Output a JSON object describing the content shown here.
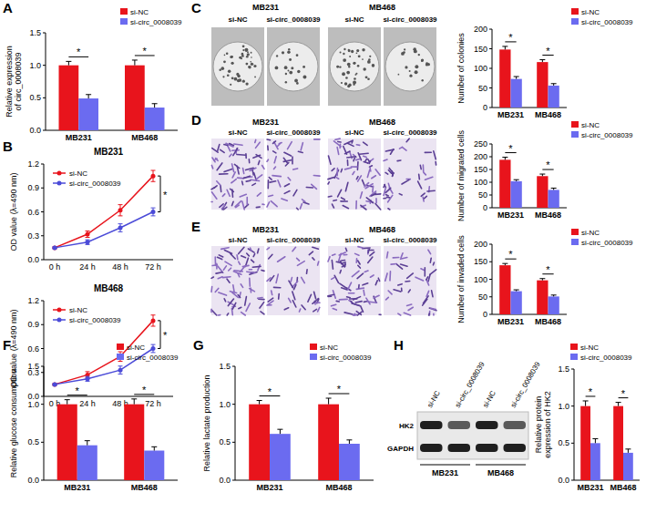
{
  "chart_data": [
    {
      "type": "bar",
      "panel": "A",
      "ylabel": [
        "Relative expression",
        "of circ_0008039"
      ],
      "categories": [
        "MB231",
        "MB468"
      ],
      "series": [
        {
          "name": "si-NC",
          "color": "#e8141c",
          "values": [
            1.0,
            1.0
          ],
          "errors": [
            0.06,
            0.08
          ]
        },
        {
          "name": "si-circ_0008039",
          "color": "#6b6bf0",
          "values": [
            0.49,
            0.35
          ],
          "errors": [
            0.06,
            0.06
          ]
        }
      ],
      "ylim": [
        0,
        1.5
      ],
      "yticks": [
        {
          "value": 0,
          "label": "0.0"
        },
        {
          "value": 0.5,
          "label": "0.5"
        },
        {
          "value": 1,
          "label": "1.0"
        },
        {
          "value": 1.5,
          "label": "1.5"
        }
      ],
      "significance": [
        "*",
        "*"
      ],
      "legend": "upper right",
      "grid": false
    },
    {
      "type": "line",
      "panel": "B",
      "title": "MB231",
      "ylabel": [
        "OD value (λ=490 nm)"
      ],
      "categories": [
        "0 h",
        "24 h",
        "48 h",
        "72 h"
      ],
      "series": [
        {
          "name": "si-NC",
          "color": "#e8141c",
          "marker": "circle",
          "line_style": "solid",
          "values": [
            0.15,
            0.32,
            0.62,
            1.05
          ],
          "errors": [
            0.01,
            0.04,
            0.07,
            0.07
          ]
        },
        {
          "name": "si-circ_0008039",
          "color": "#4b4bd8",
          "marker": "circle",
          "line_style": "solid",
          "values": [
            0.15,
            0.22,
            0.4,
            0.6
          ],
          "errors": [
            0.01,
            0.03,
            0.05,
            0.05
          ]
        }
      ],
      "ylim": [
        0,
        1.2
      ],
      "yticks": [
        {
          "value": 0,
          "label": "0.0"
        },
        {
          "value": 0.3,
          "label": "0.3"
        },
        {
          "value": 0.6,
          "label": "0.6"
        },
        {
          "value": 0.9,
          "label": "0.9"
        },
        {
          "value": 1.2,
          "label": "1.2"
        }
      ],
      "significance": [
        "*"
      ],
      "legend": "upper left",
      "grid": false
    },
    {
      "type": "line",
      "title": "MB468",
      "ylabel": [
        "OD value (λ=490 nm)"
      ],
      "categories": [
        "0 h",
        "24 h",
        "48 h",
        "72 h"
      ],
      "series": [
        {
          "name": "si-NC",
          "color": "#e8141c",
          "marker": "circle",
          "line_style": "solid",
          "values": [
            0.15,
            0.27,
            0.5,
            0.95
          ],
          "errors": [
            0.01,
            0.04,
            0.06,
            0.07
          ]
        },
        {
          "name": "si-circ_0008039",
          "color": "#4b4bd8",
          "marker": "circle",
          "line_style": "solid",
          "values": [
            0.15,
            0.22,
            0.33,
            0.6
          ],
          "errors": [
            0.01,
            0.03,
            0.05,
            0.05
          ]
        }
      ],
      "ylim": [
        0,
        1.2
      ],
      "yticks": [
        {
          "value": 0,
          "label": "0.0"
        },
        {
          "value": 0.3,
          "label": "0.3"
        },
        {
          "value": 0.6,
          "label": "0.6"
        },
        {
          "value": 0.9,
          "label": "0.9"
        },
        {
          "value": 1.2,
          "label": "1.2"
        }
      ],
      "significance": [
        "*"
      ],
      "legend": "upper left",
      "grid": false
    },
    {
      "type": "bar",
      "panel": "C",
      "ylabel": [
        "Number of colonies"
      ],
      "image_labels": {
        "groups": [
          "MB231",
          "MB468"
        ],
        "conditions": [
          "si-NC",
          "si-circ_0008039",
          "si-NC",
          "si-circ_0008039"
        ]
      },
      "categories": [
        "MB231",
        "MB468"
      ],
      "series": [
        {
          "name": "si-NC",
          "color": "#e8141c",
          "values": [
            148,
            116
          ],
          "errors": [
            8,
            6
          ]
        },
        {
          "name": "si-circ_0008039",
          "color": "#6b6bf0",
          "values": [
            73,
            56
          ],
          "errors": [
            6,
            5
          ]
        }
      ],
      "ylim": [
        0,
        200
      ],
      "yticks": [
        0,
        50,
        100,
        150,
        200
      ],
      "significance": [
        "*",
        "*"
      ],
      "legend": "upper right",
      "grid": false
    },
    {
      "type": "bar",
      "panel": "D",
      "ylabel": [
        "Number of migrated cells"
      ],
      "image_labels": {
        "groups": [
          "MB231",
          "MB468"
        ],
        "conditions": [
          "si-NC",
          "si-circ_0008039",
          "si-NC",
          "si-circ_0008039"
        ]
      },
      "categories": [
        "MB231",
        "MB468"
      ],
      "series": [
        {
          "name": "si-NC",
          "color": "#e8141c",
          "values": [
            188,
            124
          ],
          "errors": [
            10,
            8
          ]
        },
        {
          "name": "si-circ_0008039",
          "color": "#6b6bf0",
          "values": [
            104,
            70
          ],
          "errors": [
            6,
            7
          ]
        }
      ],
      "ylim": [
        0,
        250
      ],
      "yticks": [
        0,
        50,
        100,
        150,
        200,
        250
      ],
      "significance": [
        "*",
        "*"
      ],
      "legend": "upper right",
      "grid": false
    },
    {
      "type": "bar",
      "panel": "E",
      "ylabel": [
        "Number of invaded cells"
      ],
      "image_labels": {
        "groups": [
          "MB231",
          "MB468"
        ],
        "conditions": [
          "si-NC",
          "si-circ_0008039",
          "si-NC",
          "si-circ_0008039"
        ]
      },
      "categories": [
        "MB231",
        "MB468"
      ],
      "series": [
        {
          "name": "si-NC",
          "color": "#e8141c",
          "values": [
            140,
            97
          ],
          "errors": [
            5,
            5
          ]
        },
        {
          "name": "si-circ_0008039",
          "color": "#6b6bf0",
          "values": [
            66,
            51
          ],
          "errors": [
            4,
            4
          ]
        }
      ],
      "ylim": [
        0,
        200
      ],
      "yticks": [
        0,
        50,
        100,
        150,
        200
      ],
      "significance": [
        "*",
        "*"
      ],
      "legend": "upper right",
      "grid": false
    },
    {
      "type": "bar",
      "panel": "F",
      "ylabel": [
        "Relative glucose consumption"
      ],
      "categories": [
        "MB231",
        "MB468"
      ],
      "series": [
        {
          "name": "si-NC",
          "color": "#e8141c",
          "values": [
            1.0,
            1.0
          ],
          "errors": [
            0.06,
            0.07
          ]
        },
        {
          "name": "si-circ_0008039",
          "color": "#6b6bf0",
          "values": [
            0.46,
            0.39
          ],
          "errors": [
            0.06,
            0.05
          ]
        }
      ],
      "ylim": [
        0,
        1.5
      ],
      "yticks": [
        {
          "value": 0,
          "label": "0.0"
        },
        {
          "value": 0.5,
          "label": "0.5"
        },
        {
          "value": 1,
          "label": "1.0"
        },
        {
          "value": 1.5,
          "label": "1.5"
        }
      ],
      "significance": [
        "*",
        "*"
      ],
      "legend": "upper right",
      "grid": false
    },
    {
      "type": "bar",
      "panel": "G",
      "ylabel": [
        "Relative lactate production"
      ],
      "categories": [
        "MB231",
        "MB468"
      ],
      "series": [
        {
          "name": "si-NC",
          "color": "#e8141c",
          "values": [
            1.0,
            1.0
          ],
          "errors": [
            0.05,
            0.08
          ]
        },
        {
          "name": "si-circ_0008039",
          "color": "#6b6bf0",
          "values": [
            0.61,
            0.48
          ],
          "errors": [
            0.06,
            0.05
          ]
        }
      ],
      "ylim": [
        0,
        1.5
      ],
      "yticks": [
        {
          "value": 0,
          "label": "0.0"
        },
        {
          "value": 0.5,
          "label": "0.5"
        },
        {
          "value": 1,
          "label": "1.0"
        },
        {
          "value": 1.5,
          "label": "1.5"
        }
      ],
      "significance": [
        "*",
        "*"
      ],
      "legend": "upper right",
      "grid": false
    },
    {
      "type": "bar",
      "panel": "H",
      "ylabel": [
        "Relative protein",
        "expression of HK2"
      ],
      "blot": {
        "lanes": [
          "si-NC",
          "si-circ_0008039",
          "si-NC",
          "si-circ_0008039"
        ],
        "groups": [
          "MB231",
          "MB468"
        ],
        "bands": [
          "HK2",
          "GAPDH"
        ]
      },
      "categories": [
        "MB231",
        "MB468"
      ],
      "series": [
        {
          "name": "si-NC",
          "color": "#e8141c",
          "values": [
            1.0,
            1.0
          ],
          "errors": [
            0.07,
            0.05
          ]
        },
        {
          "name": "si-circ_0008039",
          "color": "#6b6bf0",
          "values": [
            0.5,
            0.37
          ],
          "errors": [
            0.06,
            0.05
          ]
        }
      ],
      "ylim": [
        0,
        1.5
      ],
      "yticks": [
        {
          "value": 0,
          "label": "0.0"
        },
        {
          "value": 0.5,
          "label": "0.5"
        },
        {
          "value": 1,
          "label": "1.0"
        },
        {
          "value": 1.5,
          "label": "1.5"
        }
      ],
      "significance": [
        "*",
        "*"
      ],
      "legend": "upper right",
      "grid": false
    }
  ]
}
